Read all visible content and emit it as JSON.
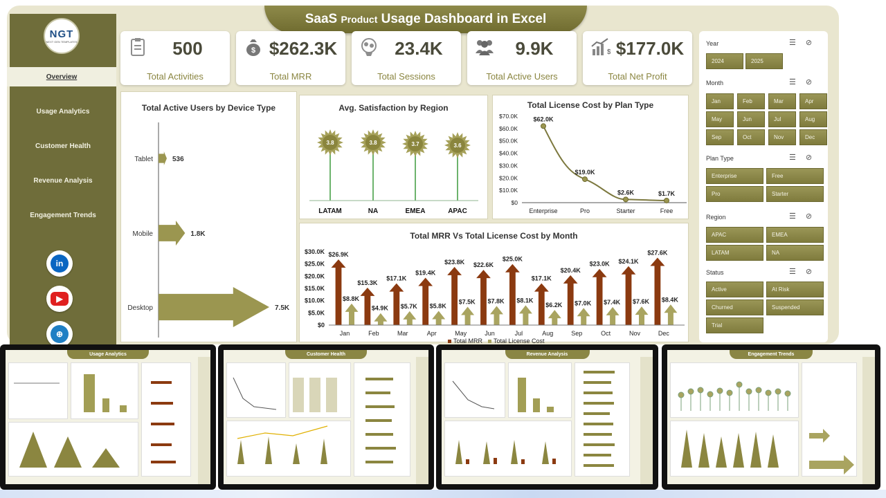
{
  "title": {
    "main1": "SaaS",
    "small": "Product",
    "main2": "Usage Dashboard in Excel"
  },
  "logo": {
    "text": "NGT",
    "sub": "NEXT GEN TEMPLATES"
  },
  "nav": [
    "Overview",
    "Usage Analytics",
    "Customer Health",
    "Revenue Analysis",
    "Engagement Trends"
  ],
  "social": {
    "linkedin": "in",
    "youtube": "▶",
    "web": "⊕"
  },
  "kpis": [
    {
      "value": "500",
      "label": "Total Activities",
      "icon": "clipboard-icon"
    },
    {
      "value": "$262.3K",
      "label": "Total MRR",
      "icon": "money-bag-icon"
    },
    {
      "value": "23.4K",
      "label": "Total Sessions",
      "icon": "brain-icon"
    },
    {
      "value": "9.9K",
      "label": "Total Active Users",
      "icon": "users-icon"
    },
    {
      "value": "$177.0K",
      "label": "Total Net Profit",
      "icon": "growth-chart-icon"
    }
  ],
  "slicers": {
    "year": {
      "title": "Year",
      "options": [
        "2024",
        "2025"
      ]
    },
    "month": {
      "title": "Month",
      "options": [
        "Jan",
        "Feb",
        "Mar",
        "Apr",
        "May",
        "Jun",
        "Jul",
        "Aug",
        "Sep",
        "Oct",
        "Nov",
        "Dec"
      ]
    },
    "plan": {
      "title": "Plan Type",
      "options": [
        "Enterprise",
        "Free",
        "Pro",
        "Starter"
      ]
    },
    "region": {
      "title": "Region",
      "options": [
        "APAC",
        "EMEA",
        "LATAM",
        "NA"
      ]
    },
    "status": {
      "title": "Status",
      "options": [
        "Active",
        "At Risk",
        "Churned",
        "Suspended",
        "Trial"
      ]
    }
  },
  "chart_data": [
    {
      "type": "bar",
      "title": "Total Active Users by Device Type",
      "categories": [
        "Tablet",
        "Mobile",
        "Desktop"
      ],
      "values": [
        536,
        1800,
        7500
      ],
      "data_labels": [
        "536",
        "1.8K",
        "7.5K"
      ]
    },
    {
      "type": "scatter",
      "title": "Avg. Satisfaction by Region",
      "categories": [
        "LATAM",
        "NA",
        "EMEA",
        "APAC"
      ],
      "values": [
        3.8,
        3.8,
        3.7,
        3.6
      ]
    },
    {
      "type": "line",
      "title": "Total License Cost by Plan Type",
      "categories": [
        "Enterprise",
        "Pro",
        "Starter",
        "Free"
      ],
      "values": [
        62000,
        19000,
        2600,
        1700
      ],
      "data_labels": [
        "$62.0K",
        "$19.0K",
        "$2.6K",
        "$1.7K"
      ],
      "y_ticks": [
        "$70.0K",
        "$60.0K",
        "$50.0K",
        "$40.0K",
        "$30.0K",
        "$20.0K",
        "$10.0K",
        "$0"
      ],
      "ylim": [
        0,
        70000
      ]
    },
    {
      "type": "bar",
      "title": "Total MRR Vs Total License Cost by Month",
      "categories": [
        "Jan",
        "Feb",
        "Mar",
        "Apr",
        "May",
        "Jun",
        "Jul",
        "Aug",
        "Sep",
        "Oct",
        "Nov",
        "Dec"
      ],
      "series": [
        {
          "name": "Total MRR",
          "values": [
            26900,
            15300,
            17100,
            19400,
            23800,
            22600,
            25000,
            17100,
            20400,
            23000,
            24100,
            27600
          ],
          "labels": [
            "$26.9K",
            "$15.3K",
            "$17.1K",
            "$19.4K",
            "$23.8K",
            "$22.6K",
            "$25.0K",
            "$17.1K",
            "$20.4K",
            "$23.0K",
            "$24.1K",
            "$27.6K"
          ],
          "color": "#8b3a10"
        },
        {
          "name": "Total License Cost",
          "values": [
            8800,
            4900,
            5700,
            5800,
            7500,
            7800,
            8100,
            6200,
            7000,
            7400,
            7600,
            8400
          ],
          "labels": [
            "$8.8K",
            "$4.9K",
            "$5.7K",
            "$5.8K",
            "$7.5K",
            "$7.8K",
            "$8.1K",
            "$6.2K",
            "$7.0K",
            "$7.4K",
            "$7.6K",
            "$8.4K"
          ],
          "color": "#a9a460"
        }
      ],
      "y_ticks": [
        "$30.0K",
        "$25.0K",
        "$20.0K",
        "$15.0K",
        "$10.0K",
        "$5.0K",
        "$0"
      ],
      "ylim": [
        0,
        30000
      ]
    }
  ],
  "thumbnails": [
    "Usage Analytics",
    "Customer Health",
    "Revenue Analysis",
    "Engagement Trends"
  ]
}
